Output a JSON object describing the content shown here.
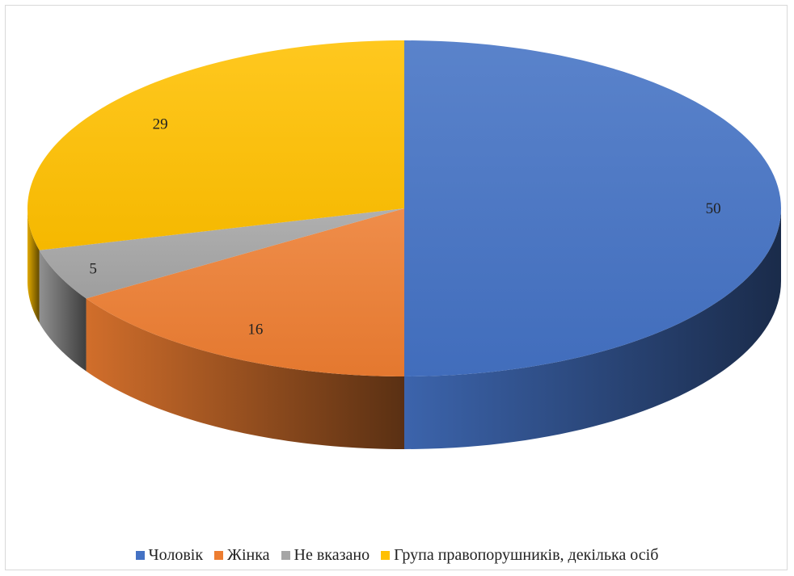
{
  "chart_data": {
    "type": "pie",
    "categories": [
      "Чоловік",
      "Жінка",
      "Не вказано",
      "Група правопорушників, декілька осіб"
    ],
    "values": [
      50,
      16,
      5,
      29
    ],
    "colors": [
      "#4472c4",
      "#ed7d31",
      "#a5a5a5",
      "#ffc000"
    ],
    "data_labels": [
      "50",
      "16",
      "5",
      "29"
    ],
    "style": "3d",
    "legend_position": "bottom"
  }
}
